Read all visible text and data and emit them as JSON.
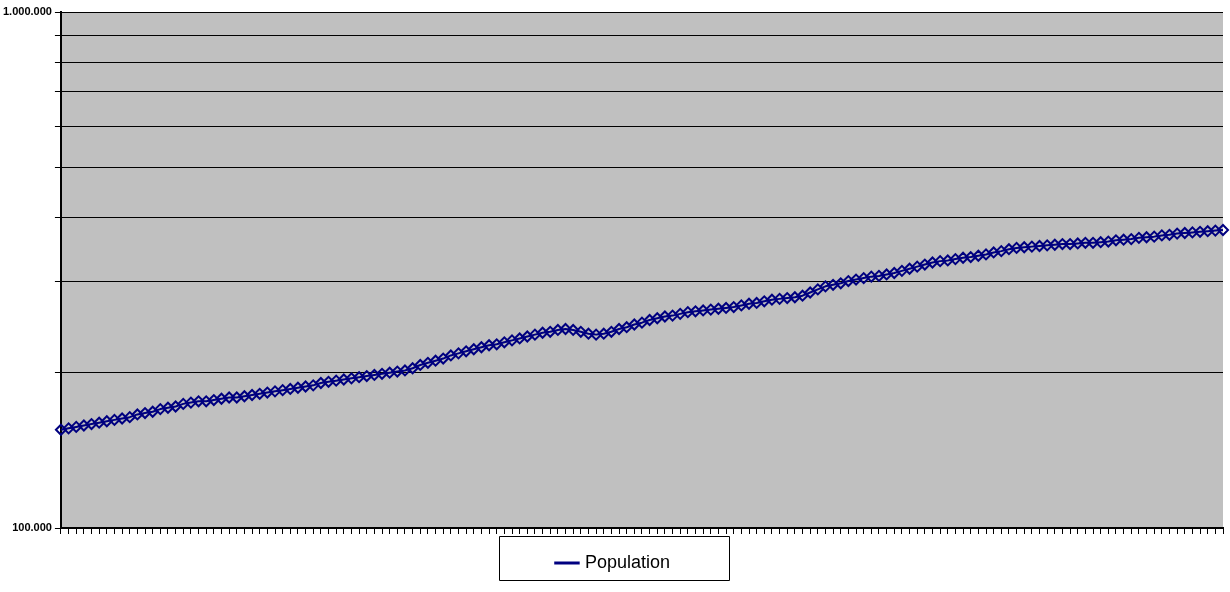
{
  "chart_data": {
    "type": "line",
    "categories": [
      null,
      null,
      null,
      null,
      null,
      null,
      null,
      null,
      null,
      null,
      null,
      null,
      null,
      null,
      null,
      null,
      null,
      null,
      null,
      null,
      null,
      null,
      null,
      null,
      null,
      null,
      null,
      null,
      null,
      null,
      null,
      null,
      null,
      null,
      null,
      null,
      null,
      null,
      null,
      null,
      null,
      null,
      null,
      null,
      null,
      null,
      null,
      null,
      null,
      null,
      null,
      null,
      null,
      null,
      null,
      null,
      null,
      null,
      null,
      null,
      null,
      null,
      null,
      null,
      null,
      null,
      null,
      null,
      null,
      null,
      null,
      null,
      null,
      null,
      null,
      null,
      null,
      null,
      null,
      null,
      null,
      null,
      null,
      null,
      null,
      null,
      null,
      null,
      null,
      null,
      null,
      null,
      null,
      null,
      null,
      null,
      null,
      null,
      null,
      null,
      null,
      null,
      null,
      null,
      null,
      null,
      null,
      null,
      null,
      null,
      null,
      null,
      null,
      null,
      null,
      null,
      null,
      null,
      null,
      null,
      null,
      null,
      null,
      null,
      null,
      null,
      null,
      null,
      null,
      null,
      null,
      null,
      null,
      null,
      null,
      null,
      null,
      null,
      null,
      null,
      null,
      null,
      null,
      null,
      null,
      null,
      null,
      null,
      null,
      null,
      null,
      null,
      null
    ],
    "series": [
      {
        "name": "Population",
        "color": "#000080",
        "values": [
          155000,
          156000,
          157000,
          158000,
          159000,
          160000,
          161000,
          162000,
          163000,
          164000,
          166000,
          167000,
          168000,
          170000,
          171000,
          172000,
          174000,
          175000,
          176000,
          176000,
          177000,
          178000,
          179000,
          179000,
          180000,
          181000,
          182000,
          183000,
          184000,
          185000,
          186000,
          187000,
          188000,
          189000,
          191000,
          192000,
          193000,
          194000,
          195000,
          196000,
          197000,
          198000,
          199000,
          200000,
          201000,
          202000,
          204000,
          207000,
          209000,
          211000,
          213000,
          216000,
          218000,
          220000,
          222000,
          224000,
          226000,
          227000,
          229000,
          231000,
          233000,
          235000,
          237000,
          239000,
          240000,
          242000,
          243000,
          242000,
          240000,
          238000,
          237000,
          238000,
          240000,
          243000,
          245000,
          248000,
          250000,
          253000,
          255000,
          257000,
          258000,
          260000,
          262000,
          263000,
          264000,
          265000,
          266000,
          267000,
          268000,
          270000,
          272000,
          273000,
          275000,
          277000,
          278000,
          279000,
          280000,
          282000,
          286000,
          290000,
          294000,
          296000,
          298000,
          301000,
          303000,
          305000,
          307000,
          308000,
          310000,
          312000,
          315000,
          318000,
          321000,
          324000,
          327000,
          329000,
          330000,
          332000,
          334000,
          335000,
          337000,
          339000,
          342000,
          344000,
          347000,
          349000,
          350000,
          351000,
          352000,
          353000,
          354000,
          355000,
          355000,
          356000,
          357000,
          357000,
          358000,
          359000,
          361000,
          362000,
          363000,
          365000,
          366000,
          367000,
          369000,
          370000,
          372000,
          373000,
          374000,
          375000,
          376000,
          377000,
          378000
        ]
      }
    ],
    "log": "y",
    "ylim": [
      100000,
      1000000
    ],
    "yticks": [
      {
        "value": 100000,
        "label": "100.000"
      },
      {
        "value": 200000,
        "label": null
      },
      {
        "value": 300000,
        "label": null
      },
      {
        "value": 400000,
        "label": null
      },
      {
        "value": 500000,
        "label": null
      },
      {
        "value": 600000,
        "label": null
      },
      {
        "value": 700000,
        "label": null
      },
      {
        "value": 800000,
        "label": null
      },
      {
        "value": 900000,
        "label": null
      },
      {
        "value": 1000000,
        "label": "1.000.000"
      }
    ],
    "grid": "y",
    "legend": "bottom",
    "marker": "diamond",
    "line_style": "solid"
  }
}
